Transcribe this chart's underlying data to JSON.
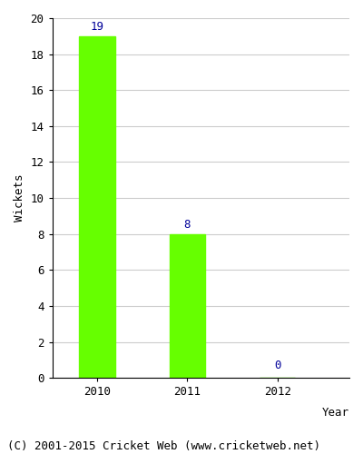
{
  "categories": [
    "2010",
    "2011",
    "2012"
  ],
  "values": [
    19,
    8,
    0
  ],
  "bar_color": "#66ff00",
  "bar_edge_color": "#66ff00",
  "label_color": "#000099",
  "xlabel": "Year",
  "ylabel": "Wickets",
  "ylim": [
    0,
    20
  ],
  "yticks": [
    0,
    2,
    4,
    6,
    8,
    10,
    12,
    14,
    16,
    18,
    20
  ],
  "footnote": "(C) 2001-2015 Cricket Web (www.cricketweb.net)",
  "label_fontsize": 9,
  "tick_fontsize": 9,
  "axis_label_fontsize": 9,
  "footnote_fontsize": 9,
  "grid_color": "#cccccc",
  "bar_width": 0.4
}
